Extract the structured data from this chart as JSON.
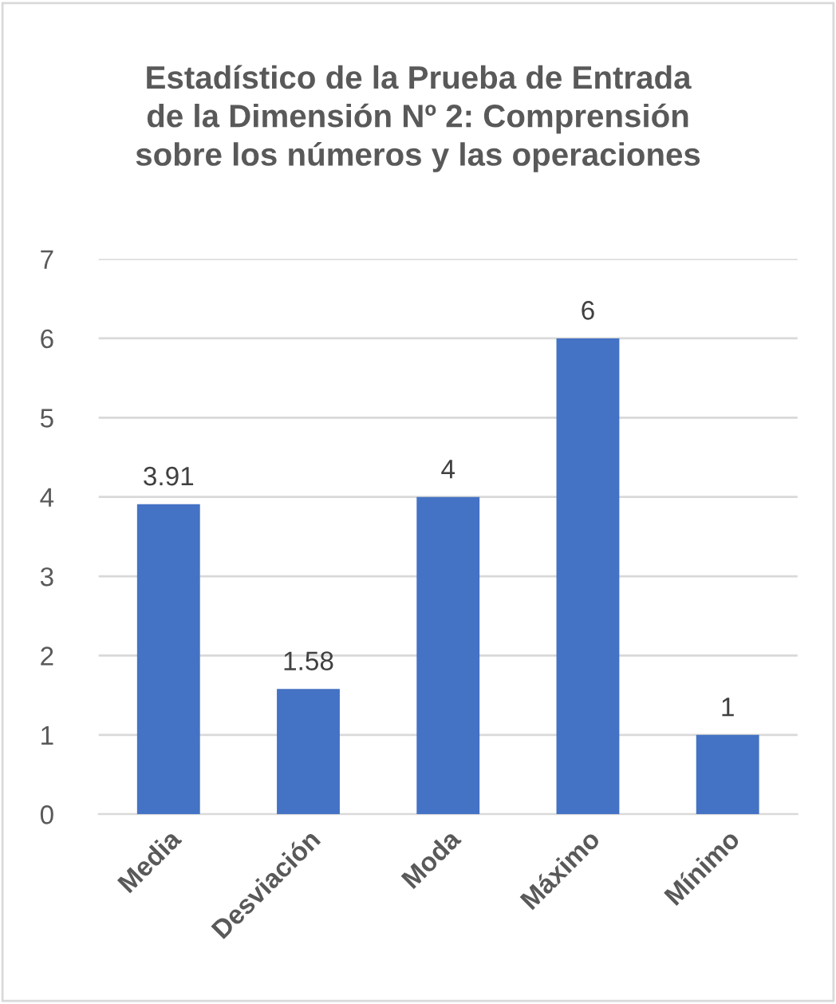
{
  "chart_data": {
    "type": "bar",
    "title": "Estadístico de la Prueba de Entrada\nde la Dimensión Nº 2: Comprensión\nsobre los números y las operaciones",
    "categories": [
      "Media",
      "Desviación",
      "Moda",
      "Máximo",
      "Mínimo"
    ],
    "values": [
      3.91,
      1.58,
      4,
      6,
      1
    ],
    "color": "#4472c4",
    "ylim": [
      0,
      7
    ],
    "yticks": [
      0,
      1,
      2,
      3,
      4,
      5,
      6,
      7
    ],
    "grid": "y",
    "data_labels": true
  }
}
